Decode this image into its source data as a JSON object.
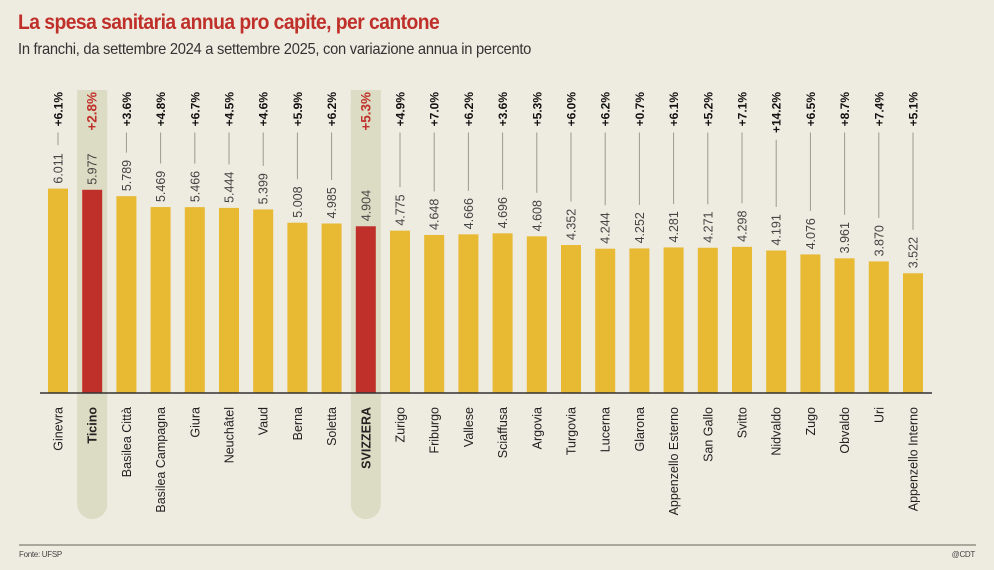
{
  "header": {
    "title": "La spesa sanitaria annua pro capite, per cantone",
    "subtitle": "In franchi, da settembre 2024 a settembre 2025, con variazione annua in percento"
  },
  "footer": {
    "source": "Fonte: UFSP",
    "credit": "@CDT"
  },
  "colors": {
    "background": "#eeebe0",
    "bar": "#e8b932",
    "highlight_bar": "#c0302a",
    "highlight_band": "#dcdbc3",
    "title": "#c0302a",
    "connector": "#9a9a92",
    "baseline": "#333333"
  },
  "chart_data": {
    "type": "bar",
    "title": "La spesa sanitaria annua pro capite, per cantone",
    "subtitle": "In franchi, da settembre 2024 a settembre 2025, con variazione annua in percento",
    "xlabel": "",
    "ylabel": "Franchi",
    "ylim": [
      0,
      6500
    ],
    "grid": false,
    "legend": "none",
    "categories": [
      "Ginevra",
      "Ticino",
      "Basilea Città",
      "Basilea Campagna",
      "Giura",
      "Neuchâtel",
      "Vaud",
      "Berna",
      "Soletta",
      "SVIZZERA",
      "Zurigo",
      "Friburgo",
      "Vallese",
      "Sciaffusa",
      "Argovia",
      "Turgovia",
      "Lucerna",
      "Glarona",
      "Appenzello Esterno",
      "San Gallo",
      "Svitto",
      "Nidvaldo",
      "Zugo",
      "Obvaldo",
      "Uri",
      "Appenzello Interno"
    ],
    "values": [
      6011,
      5977,
      5789,
      5469,
      5466,
      5444,
      5399,
      5008,
      4985,
      4904,
      4775,
      4648,
      4666,
      4696,
      4608,
      4352,
      4244,
      4252,
      4281,
      4271,
      4298,
      4191,
      4076,
      3961,
      3870,
      3522
    ],
    "value_labels": [
      "6.011",
      "5.977",
      "5.789",
      "5.469",
      "5.466",
      "5.444",
      "5.399",
      "5.008",
      "4.985",
      "4.904",
      "4.775",
      "4.648",
      "4.666",
      "4.696",
      "4.608",
      "4.352",
      "4.244",
      "4.252",
      "4.281",
      "4.271",
      "4.298",
      "4.191",
      "4.076",
      "3.961",
      "3.870",
      "3.522"
    ],
    "annual_change_pct": [
      6.1,
      2.8,
      3.6,
      4.8,
      6.7,
      4.5,
      4.6,
      5.9,
      6.2,
      5.3,
      4.9,
      7.0,
      6.2,
      3.6,
      5.3,
      6.0,
      6.2,
      0.7,
      6.1,
      5.2,
      7.1,
      14.2,
      6.5,
      8.7,
      7.4,
      5.1
    ],
    "change_labels": [
      "+6.1%",
      "+2.8%",
      "+3.6%",
      "+4.8%",
      "+6.7%",
      "+4.5%",
      "+4.6%",
      "+5.9%",
      "+6.2%",
      "+5.3%",
      "+4.9%",
      "+7.0%",
      "+6.2%",
      "+3.6%",
      "+5.3%",
      "+6.0%",
      "+6.2%",
      "+0.7%",
      "+6.1%",
      "+5.2%",
      "+7.1%",
      "+14.2%",
      "+6.5%",
      "+8.7%",
      "+7.4%",
      "+5.1%"
    ],
    "highlighted": [
      "Ticino",
      "SVIZZERA"
    ]
  }
}
